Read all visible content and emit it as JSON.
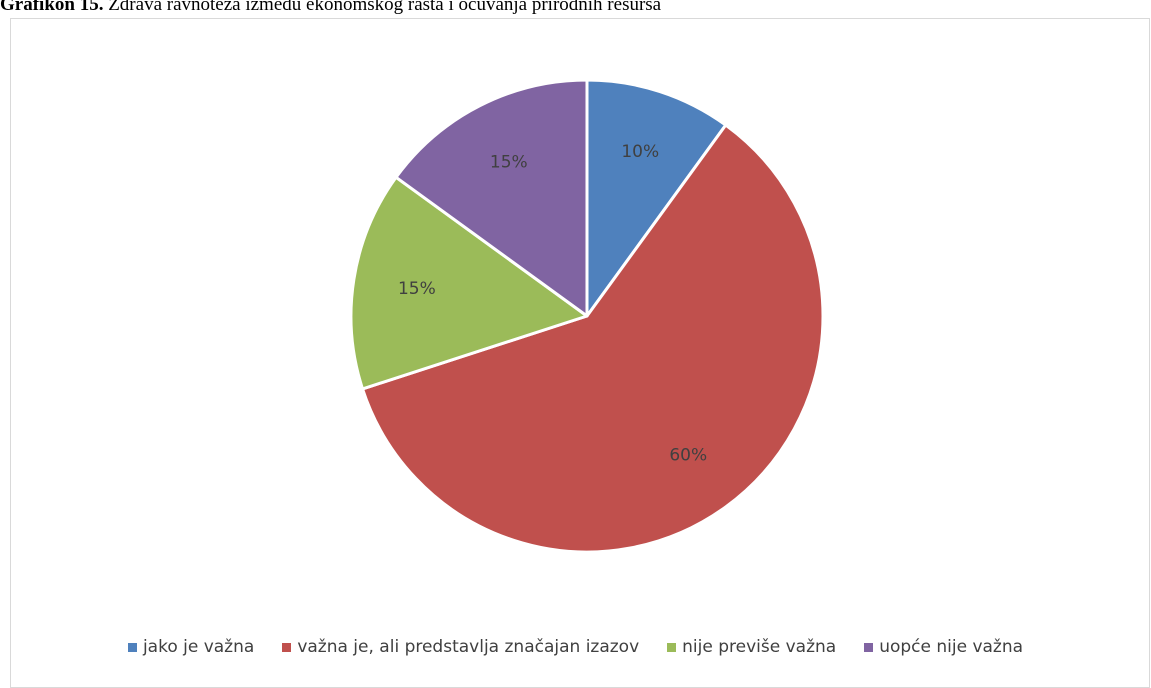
{
  "caption": {
    "label": "Grafikon 15.",
    "text": " Zdrava ravnoteža između ekonomskog rasta i očuvanja prirodnih resursa"
  },
  "chart_data": {
    "type": "pie",
    "categories": [
      "jako je važna",
      "važna je, ali predstavlja značajan izazov",
      "nije previše važna",
      "uopće nije važna"
    ],
    "values": [
      10,
      60,
      15,
      15
    ],
    "data_labels": [
      "10%",
      "60%",
      "15%",
      "15%"
    ],
    "colors": [
      "#4f81bd",
      "#c0504d",
      "#9bbb59",
      "#8064a2"
    ],
    "start_angle_deg": 0,
    "direction": "clockwise",
    "legend_position": "bottom"
  }
}
